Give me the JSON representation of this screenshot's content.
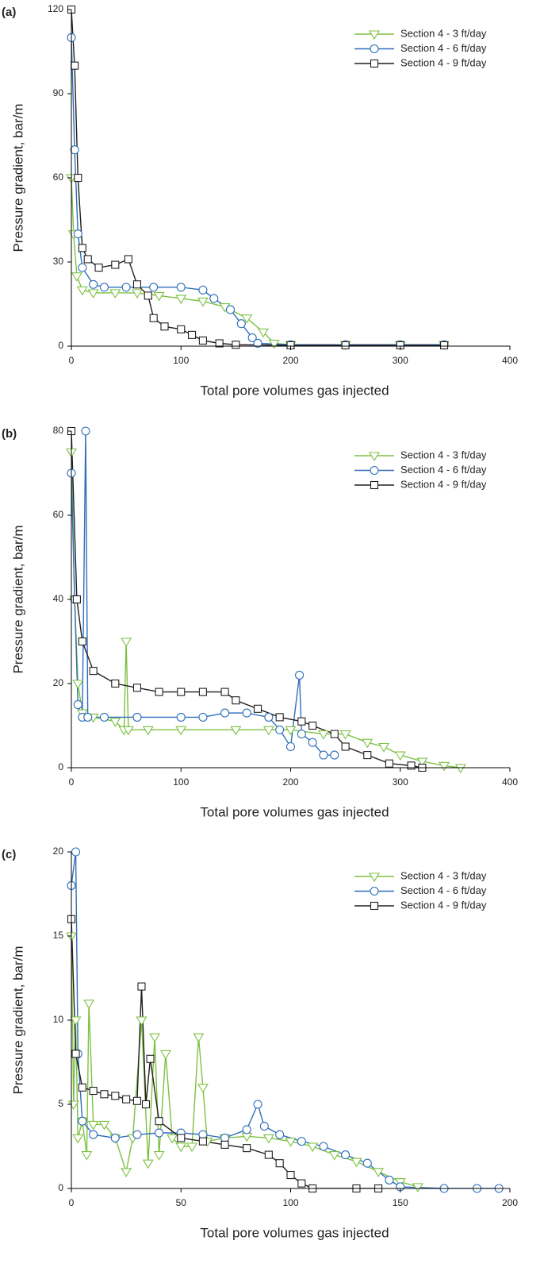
{
  "chart_data": [
    {
      "type": "line",
      "label": "(a)",
      "xlabel": "Total pore volumes gas injected",
      "ylabel": "Pressure gradient, bar/m",
      "xlim": [
        0,
        400
      ],
      "xticks": [
        0,
        100,
        200,
        300,
        400
      ],
      "ylim": [
        0,
        120
      ],
      "yticks": [
        0,
        30,
        60,
        90,
        120
      ],
      "legend": "upper right",
      "series": [
        {
          "name": "Section 4 - 3 ft/day",
          "color": "#7dc142",
          "marker": "triangle-down",
          "x": [
            0,
            2,
            5,
            10,
            20,
            40,
            60,
            80,
            100,
            120,
            140,
            160,
            175,
            185,
            200,
            250,
            300,
            340
          ],
          "values": [
            60,
            40,
            25,
            20,
            19,
            19,
            19,
            18,
            17,
            16,
            14,
            10,
            5,
            1,
            0.5,
            0.5,
            0.5,
            0.5
          ]
        },
        {
          "name": "Section 4 - 6 ft/day",
          "color": "#2f6fba",
          "marker": "circle",
          "x": [
            0,
            3,
            6,
            10,
            20,
            30,
            50,
            75,
            100,
            120,
            130,
            145,
            155,
            165,
            170,
            200,
            250,
            300,
            340
          ],
          "values": [
            110,
            70,
            40,
            28,
            22,
            21,
            21,
            21,
            21,
            20,
            17,
            13,
            8,
            3,
            1,
            0.5,
            0.5,
            0.5,
            0.5
          ]
        },
        {
          "name": "Section 4 - 9 ft/day",
          "color": "#231f20",
          "marker": "square",
          "x": [
            0,
            3,
            6,
            10,
            15,
            25,
            40,
            52,
            60,
            70,
            75,
            85,
            100,
            110,
            120,
            135,
            150,
            200,
            250,
            300,
            340
          ],
          "values": [
            120,
            100,
            60,
            35,
            31,
            28,
            29,
            31,
            22,
            18,
            10,
            7,
            6,
            4,
            2,
            1,
            0.5,
            0.3,
            0.3,
            0.3,
            0.3
          ]
        }
      ]
    },
    {
      "type": "line",
      "label": "(b)",
      "xlabel": "Total pore volumes gas injected",
      "ylabel": "Pressure gradient, bar/m",
      "xlim": [
        0,
        400
      ],
      "xticks": [
        0,
        100,
        200,
        300,
        400
      ],
      "ylim": [
        0,
        80
      ],
      "yticks": [
        0,
        20,
        40,
        60,
        80
      ],
      "legend": "upper right",
      "series": [
        {
          "name": "Section 4 - 3 ft/day",
          "color": "#7dc142",
          "marker": "triangle-down",
          "x": [
            0,
            3,
            6,
            10,
            20,
            40,
            48,
            50,
            52,
            70,
            100,
            150,
            180,
            200,
            230,
            250,
            270,
            285,
            300,
            320,
            340,
            355
          ],
          "values": [
            75,
            40,
            20,
            13,
            12,
            11,
            9,
            30,
            9,
            9,
            9,
            9,
            9,
            9,
            8,
            8,
            6,
            5,
            3,
            1.5,
            0.5,
            0
          ]
        },
        {
          "name": "Section 4 - 6 ft/day",
          "color": "#2f6fba",
          "marker": "circle",
          "x": [
            0,
            3,
            6,
            10,
            13,
            15,
            30,
            60,
            100,
            120,
            140,
            160,
            180,
            190,
            200,
            208,
            210,
            220,
            230,
            240
          ],
          "values": [
            70,
            40,
            15,
            12,
            80,
            12,
            12,
            12,
            12,
            12,
            13,
            13,
            12,
            9,
            5,
            22,
            8,
            6,
            3,
            3
          ]
        },
        {
          "name": "Section 4 - 9 ft/day",
          "color": "#231f20",
          "marker": "square",
          "x": [
            0,
            5,
            10,
            20,
            40,
            60,
            80,
            100,
            120,
            140,
            150,
            170,
            190,
            210,
            220,
            240,
            250,
            270,
            290,
            310,
            320
          ],
          "values": [
            80,
            40,
            30,
            23,
            20,
            19,
            18,
            18,
            18,
            18,
            16,
            14,
            12,
            11,
            10,
            8,
            5,
            3,
            1,
            0.5,
            0
          ]
        }
      ]
    },
    {
      "type": "line",
      "label": "(c)",
      "xlabel": "Total pore volumes gas injected",
      "ylabel": "Pressure gradient, bar/m",
      "xlim": [
        0,
        200
      ],
      "xticks": [
        0,
        50,
        100,
        150,
        200
      ],
      "ylim": [
        0,
        20
      ],
      "yticks": [
        0,
        5,
        10,
        15,
        20
      ],
      "legend": "upper right",
      "series": [
        {
          "name": "Section 4 - 3 ft/day",
          "color": "#7dc142",
          "marker": "triangle-down",
          "x": [
            0,
            1,
            2,
            3,
            5,
            7,
            8,
            10,
            15,
            20,
            25,
            28,
            32,
            35,
            38,
            40,
            43,
            46,
            50,
            55,
            58,
            60,
            62,
            70,
            80,
            90,
            100,
            110,
            120,
            130,
            140,
            150,
            158
          ],
          "values": [
            15,
            5,
            10,
            3,
            4,
            2,
            11,
            3.8,
            3.8,
            3,
            1,
            3,
            10,
            1.5,
            9,
            2,
            8,
            3,
            2.5,
            2.5,
            9,
            6,
            2.8,
            3,
            3.1,
            3,
            2.8,
            2.5,
            2,
            1.6,
            1,
            0.4,
            0.1
          ]
        },
        {
          "name": "Section 4 - 6 ft/day",
          "color": "#2f6fba",
          "marker": "circle",
          "x": [
            0,
            2,
            3,
            5,
            10,
            20,
            30,
            40,
            50,
            60,
            70,
            80,
            85,
            88,
            95,
            105,
            115,
            125,
            135,
            145,
            150,
            170,
            185,
            195
          ],
          "values": [
            18,
            20,
            8,
            4,
            3.2,
            3,
            3.2,
            3.3,
            3.3,
            3.2,
            3,
            3.5,
            5,
            3.7,
            3.2,
            2.8,
            2.5,
            2,
            1.5,
            0.5,
            0.1,
            0,
            0,
            0
          ]
        },
        {
          "name": "Section 4 - 9 ft/day",
          "color": "#231f20",
          "marker": "square",
          "x": [
            0,
            2,
            5,
            10,
            15,
            20,
            25,
            30,
            32,
            34,
            36,
            40,
            50,
            60,
            70,
            80,
            90,
            95,
            100,
            105,
            110,
            130,
            140
          ],
          "values": [
            16,
            8,
            6,
            5.8,
            5.6,
            5.5,
            5.3,
            5.2,
            12,
            5,
            7.7,
            4,
            3,
            2.8,
            2.6,
            2.4,
            2,
            1.5,
            0.8,
            0.3,
            0,
            0,
            0
          ]
        }
      ]
    }
  ]
}
